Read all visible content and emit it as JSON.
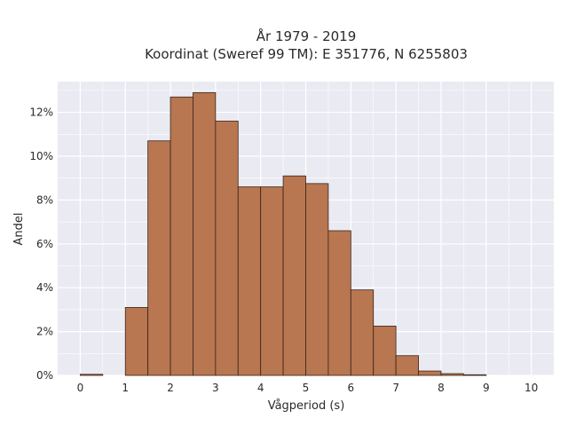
{
  "chart_data": {
    "type": "bar",
    "title_lines": [
      "År 1979 - 2019",
      "Koordinat (Sweref 99 TM): E 351776, N 6255803"
    ],
    "xlabel": "Vågperiod (s)",
    "ylabel": "Andel",
    "xlim": [
      -0.5,
      10.5
    ],
    "ylim": [
      0,
      13.4
    ],
    "x_ticks": [
      0,
      1,
      2,
      3,
      4,
      5,
      6,
      7,
      8,
      9,
      10
    ],
    "y_ticks": [
      0,
      2,
      4,
      6,
      8,
      10,
      12
    ],
    "y_tick_suffix": "%",
    "grid": true,
    "bar_color": "#b87651",
    "bar_edge_color": "#3a2418",
    "plot_background": "#eaeaf2",
    "bin_width": 0.5,
    "bins": [
      {
        "x0": 0.0,
        "x1": 0.5,
        "value": 0.05
      },
      {
        "x0": 0.5,
        "x1": 1.0,
        "value": 0.0
      },
      {
        "x0": 1.0,
        "x1": 1.5,
        "value": 3.1
      },
      {
        "x0": 1.5,
        "x1": 2.0,
        "value": 10.7
      },
      {
        "x0": 2.0,
        "x1": 2.5,
        "value": 12.7
      },
      {
        "x0": 2.5,
        "x1": 3.0,
        "value": 12.9
      },
      {
        "x0": 3.0,
        "x1": 3.5,
        "value": 11.6
      },
      {
        "x0": 3.5,
        "x1": 4.0,
        "value": 8.6
      },
      {
        "x0": 4.0,
        "x1": 4.5,
        "value": 8.6
      },
      {
        "x0": 4.5,
        "x1": 5.0,
        "value": 9.1
      },
      {
        "x0": 5.0,
        "x1": 5.5,
        "value": 8.75
      },
      {
        "x0": 5.5,
        "x1": 6.0,
        "value": 6.6
      },
      {
        "x0": 6.0,
        "x1": 6.5,
        "value": 3.9
      },
      {
        "x0": 6.5,
        "x1": 7.0,
        "value": 2.25
      },
      {
        "x0": 7.0,
        "x1": 7.5,
        "value": 0.9
      },
      {
        "x0": 7.5,
        "x1": 8.0,
        "value": 0.2
      },
      {
        "x0": 8.0,
        "x1": 8.5,
        "value": 0.08
      },
      {
        "x0": 8.5,
        "x1": 9.0,
        "value": 0.03
      }
    ]
  }
}
